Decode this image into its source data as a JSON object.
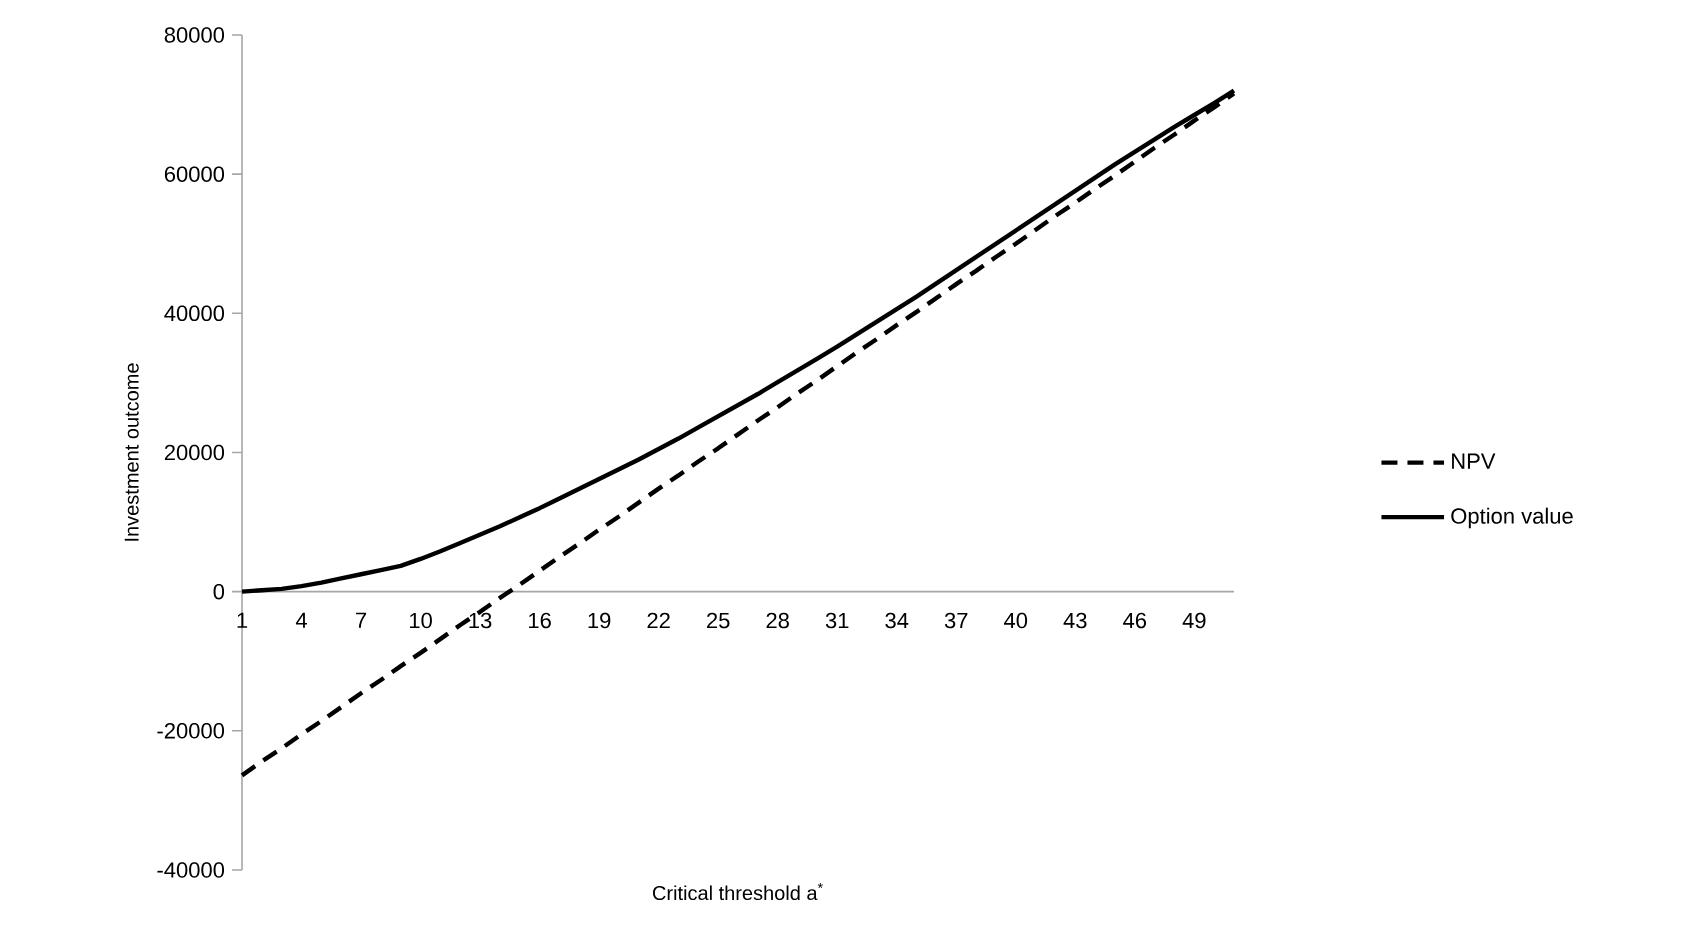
{
  "chart_data": {
    "type": "line",
    "xlabel": "Critical threshold a$^{*}$",
    "ylabel": "Investment outcome",
    "categories": [
      "1",
      null,
      null,
      "4",
      null,
      null,
      "7",
      null,
      null,
      "10",
      null,
      null,
      "13",
      null,
      null,
      "16",
      null,
      null,
      "19",
      null,
      null,
      "22",
      null,
      null,
      "25",
      null,
      null,
      "28",
      null,
      null,
      "31",
      null,
      null,
      "34",
      null,
      null,
      "37",
      null,
      null,
      "40",
      null,
      null,
      "43",
      null,
      null,
      "46",
      null,
      null,
      "49",
      null,
      null
    ],
    "ylim": [
      -40000,
      80000
    ],
    "yticks": [
      -40000,
      -20000,
      0,
      20000,
      40000,
      60000,
      80000
    ],
    "legend": "right",
    "series": [
      {
        "name": "NPV",
        "color": "#000000",
        "line_style": "dashed",
        "values": [
          -26400,
          -24400,
          -22500,
          -20500,
          -18600,
          -16600,
          -14600,
          -12700,
          -10700,
          -8800,
          -6800,
          -4800,
          -2900,
          -900,
          1000,
          3000,
          5000,
          6900,
          8900,
          10800,
          12800,
          14800,
          16700,
          18700,
          20600,
          22600,
          24600,
          26500,
          28500,
          30400,
          32400,
          34400,
          36300,
          38300,
          40200,
          42200,
          44200,
          46100,
          48100,
          50000,
          52000,
          54000,
          55900,
          57900,
          59800,
          61800,
          63800,
          65700,
          67700,
          69600,
          71600
        ]
      },
      {
        "name": "Option value",
        "color": "#000000",
        "line_style": "solid",
        "values": [
          0,
          200,
          400,
          800,
          1300,
          1900,
          2500,
          3100,
          3700,
          4700,
          5800,
          7000,
          8200,
          9400,
          10700,
          12000,
          13400,
          14800,
          16200,
          17600,
          19000,
          20500,
          22000,
          23600,
          25200,
          26800,
          28400,
          30100,
          31800,
          33500,
          35200,
          37000,
          38800,
          40600,
          42400,
          44300,
          46200,
          48100,
          50000,
          51900,
          53800,
          55700,
          57600,
          59500,
          61400,
          63200,
          65000,
          66800,
          68500,
          70200,
          72000
        ]
      }
    ]
  }
}
